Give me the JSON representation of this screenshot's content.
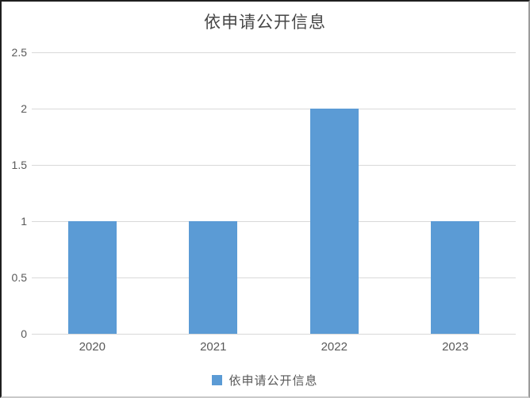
{
  "chart_data": {
    "type": "bar",
    "title": "依申请公开信息",
    "categories": [
      "2020",
      "2021",
      "2022",
      "2023"
    ],
    "series": [
      {
        "name": "依申请公开信息",
        "values": [
          1,
          1,
          2,
          1
        ]
      }
    ],
    "xlabel": "",
    "ylabel": "",
    "ylim": [
      0,
      2.5
    ],
    "ytick_step": 0.5,
    "ytick_labels": [
      "0",
      "0.5",
      "1",
      "1.5",
      "2",
      "2.5"
    ],
    "grid": true,
    "legend_position": "bottom",
    "colors": {
      "bar": "#5b9bd5",
      "gridline": "#d9d9d9",
      "title_text": "#474747",
      "tick_text": "#595959"
    }
  }
}
